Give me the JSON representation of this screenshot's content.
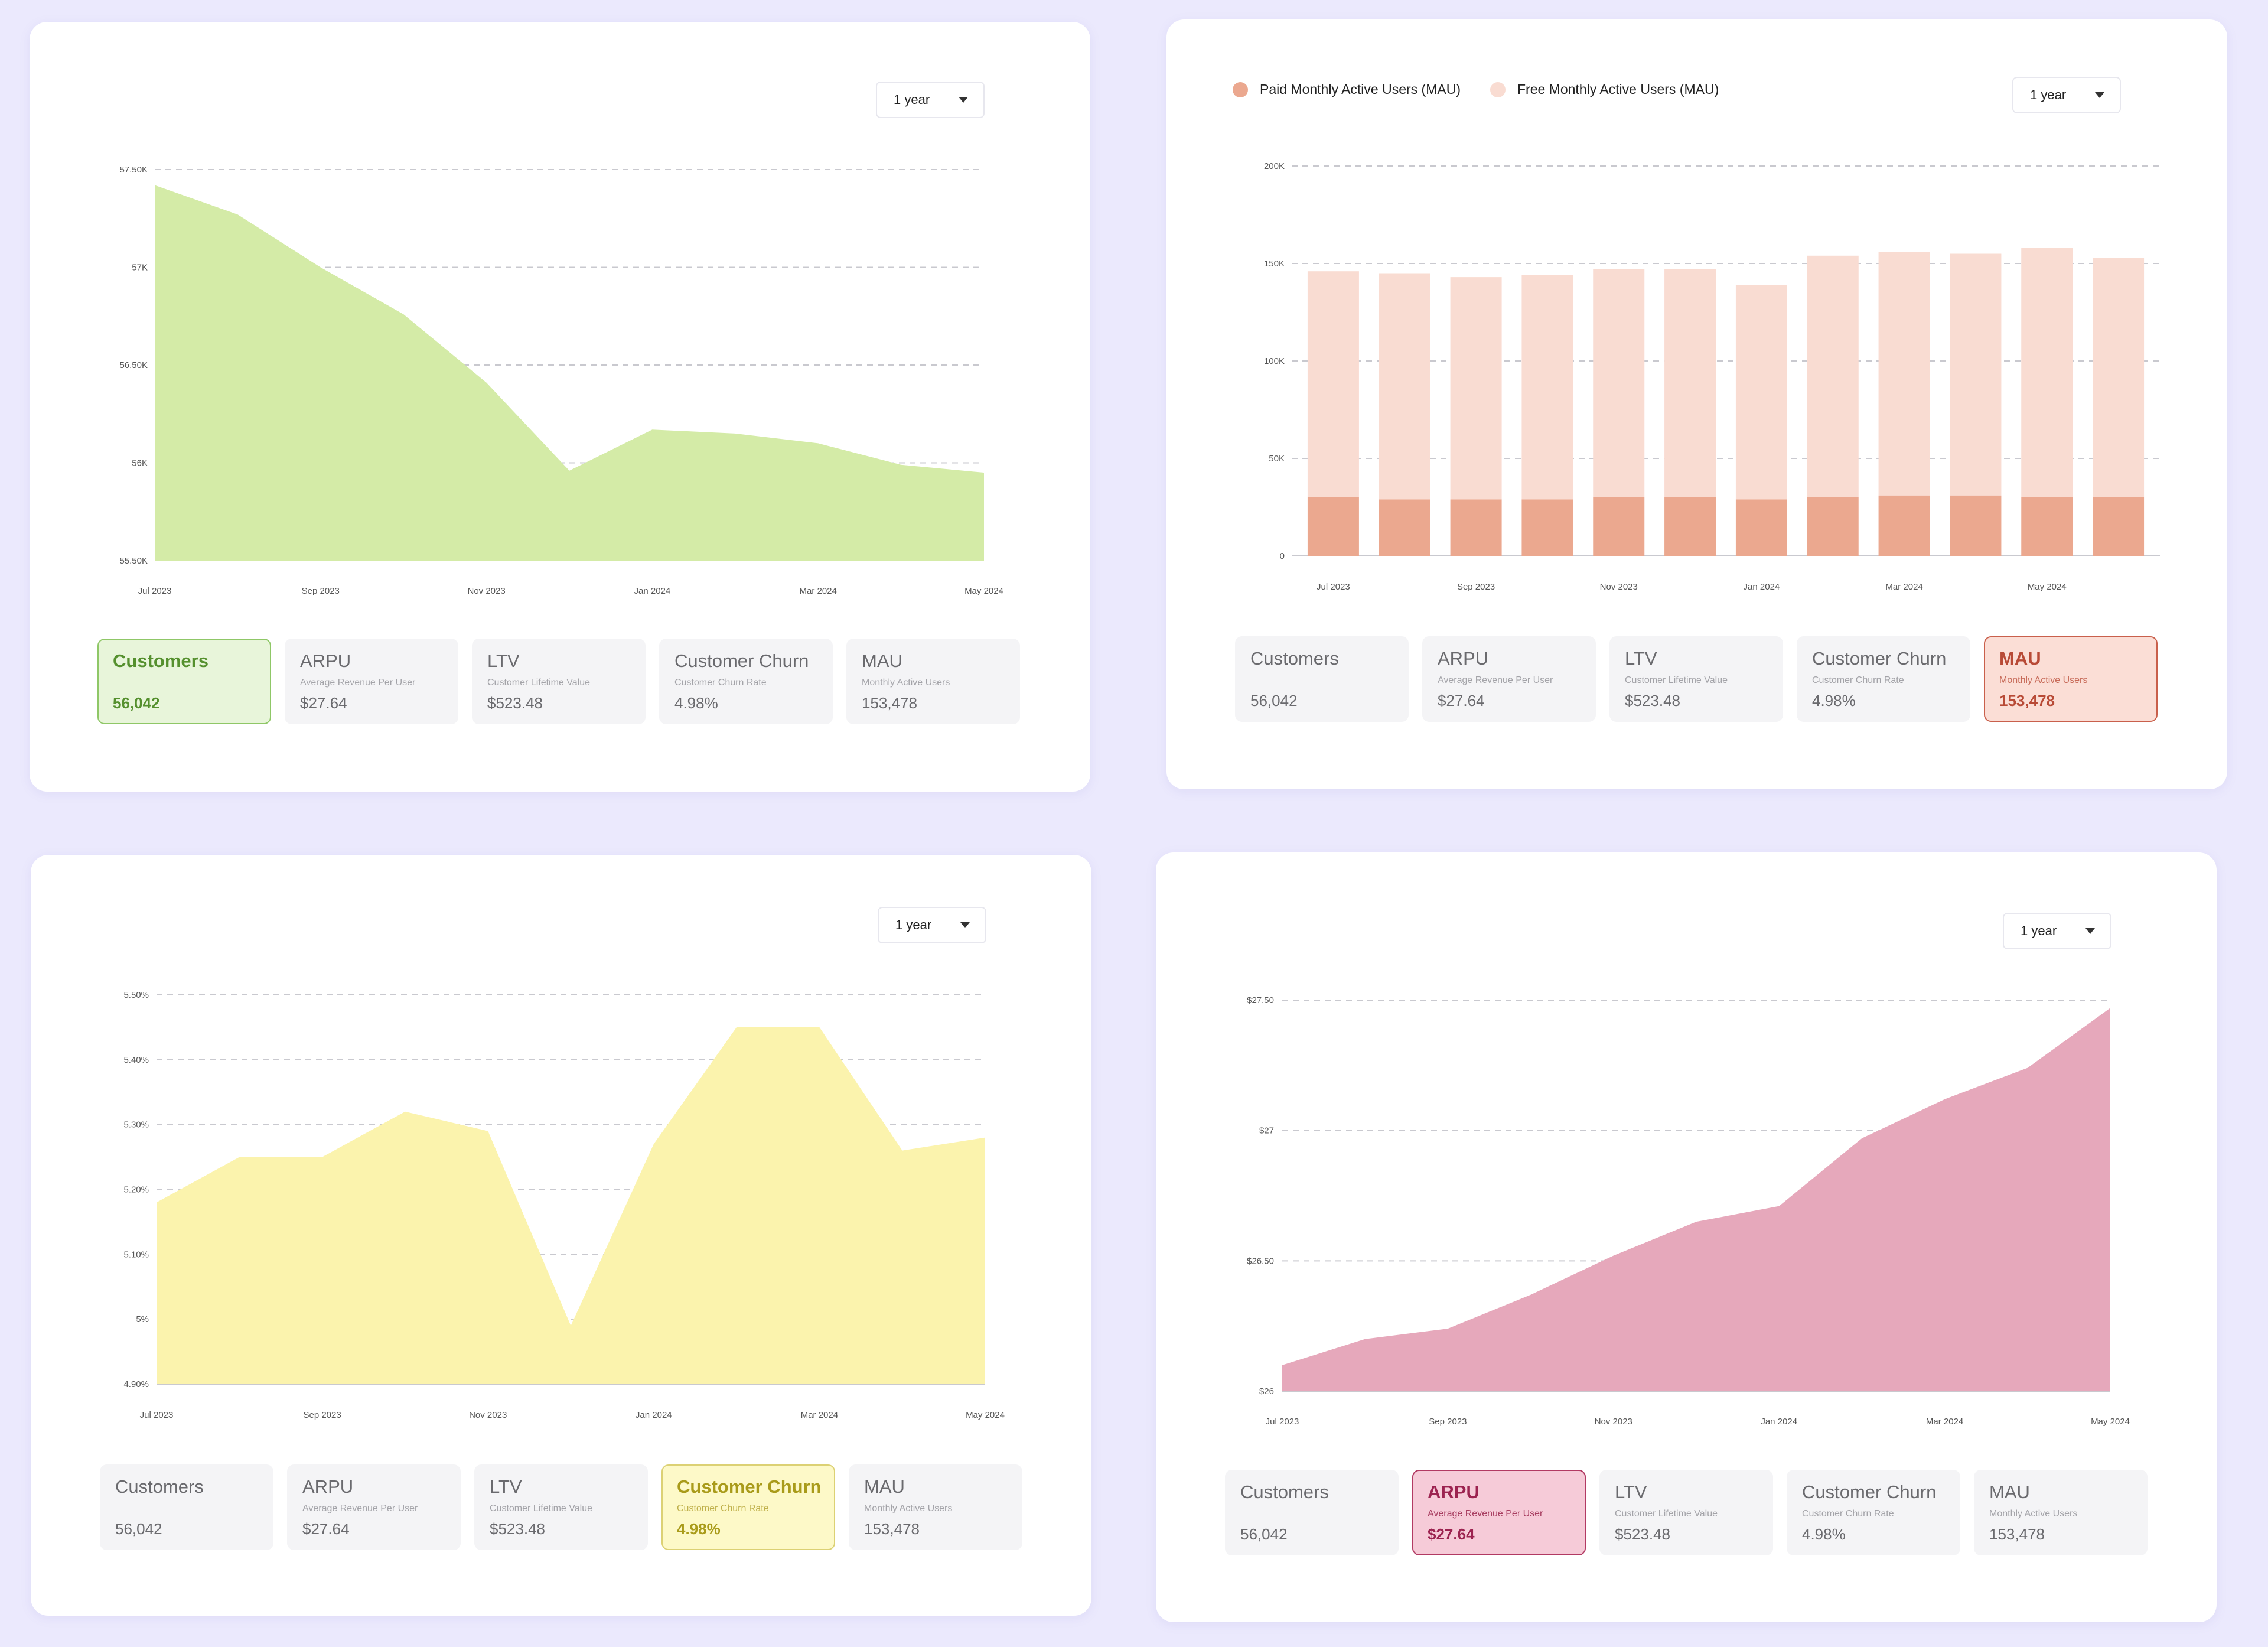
{
  "tiles": [
    {
      "key": "customers",
      "title": "Customers",
      "subtitle": "",
      "value": "56,042"
    },
    {
      "key": "arpu",
      "title": "ARPU",
      "subtitle": "Average Revenue Per User",
      "value": "$27.64"
    },
    {
      "key": "ltv",
      "title": "LTV",
      "subtitle": "Customer Lifetime Value",
      "value": "$523.48"
    },
    {
      "key": "churn",
      "title": "Customer Churn",
      "subtitle": "Customer Churn Rate",
      "value": "4.98%"
    },
    {
      "key": "mau",
      "title": "MAU",
      "subtitle": "Monthly Active Users",
      "value": "153,478"
    }
  ],
  "panels": [
    {
      "range_label": "1 year",
      "active_tile": "customers"
    },
    {
      "range_label": "1 year",
      "active_tile": "mau"
    },
    {
      "range_label": "1 year",
      "active_tile": "churn"
    },
    {
      "range_label": "1 year",
      "active_tile": "arpu"
    }
  ],
  "legend": {
    "paid_label": "Paid Monthly Active Users (MAU)",
    "free_label": "Free Monthly Active Users (MAU)"
  },
  "colors": {
    "customers_fill": "#d4eba7",
    "paid": "#eba88f",
    "free": "#f9dcd2",
    "churn_fill": "#fbf3ad",
    "arpu_fill": "#e6a8bb",
    "grid": "#c9c9cf"
  },
  "chart_data": [
    {
      "type": "area",
      "title": "Customers",
      "x_tick_labels": [
        "Jul 2023",
        "Sep 2023",
        "Nov 2023",
        "Jan 2024",
        "Mar 2024",
        "May 2024"
      ],
      "y_tick_labels": [
        "55.50K",
        "56K",
        "56.50K",
        "57K",
        "57.50K"
      ],
      "y_ticks": [
        55500,
        56000,
        56500,
        57000,
        57500
      ],
      "ylim": [
        55500,
        57500
      ],
      "points": [
        {
          "x": 0,
          "y": 57420
        },
        {
          "x": 0.5,
          "y": 57270
        },
        {
          "x": 1,
          "y": 57000
        },
        {
          "x": 1.5,
          "y": 56760
        },
        {
          "x": 2,
          "y": 56410
        },
        {
          "x": 2.5,
          "y": 55960
        },
        {
          "x": 3,
          "y": 56170
        },
        {
          "x": 3.5,
          "y": 56150
        },
        {
          "x": 4,
          "y": 56100
        },
        {
          "x": 4.5,
          "y": 55990
        },
        {
          "x": 5,
          "y": 55950
        }
      ]
    },
    {
      "type": "bar",
      "title": "Monthly Active Users",
      "stacked": true,
      "x_tick_labels": [
        "Jul 2023",
        "Sep 2023",
        "Nov 2023",
        "Jan 2024",
        "Mar 2024",
        "May 2024"
      ],
      "x_tick_positions": [
        0,
        2,
        4,
        6,
        8,
        10
      ],
      "y_tick_labels": [
        "0",
        "50K",
        "100K",
        "150K",
        "200K"
      ],
      "y_ticks": [
        0,
        50000,
        100000,
        150000,
        200000
      ],
      "ylim": [
        0,
        200000
      ],
      "series": [
        {
          "name": "Paid Monthly Active Users (MAU)",
          "values": [
            30000,
            29000,
            29000,
            29000,
            30000,
            30000,
            29000,
            30000,
            31000,
            31000,
            30000,
            30000
          ]
        },
        {
          "name": "Free Monthly Active Users (MAU)",
          "values": [
            116000,
            116000,
            114000,
            115000,
            117000,
            117000,
            110000,
            124000,
            125000,
            124000,
            128000,
            123000
          ]
        }
      ]
    },
    {
      "type": "area",
      "title": "Customer Churn",
      "x_tick_labels": [
        "Jul 2023",
        "Sep 2023",
        "Nov 2023",
        "Jan 2024",
        "Mar 2024",
        "May 2024"
      ],
      "y_tick_labels": [
        "4.90%",
        "5%",
        "5.10%",
        "5.20%",
        "5.30%",
        "5.40%",
        "5.50%"
      ],
      "y_ticks": [
        4.9,
        5.0,
        5.1,
        5.2,
        5.3,
        5.4,
        5.5
      ],
      "ylim": [
        4.9,
        5.5
      ],
      "points": [
        {
          "x": 0,
          "y": 5.18
        },
        {
          "x": 0.5,
          "y": 5.25
        },
        {
          "x": 1,
          "y": 5.25
        },
        {
          "x": 1.5,
          "y": 5.32
        },
        {
          "x": 2,
          "y": 5.29
        },
        {
          "x": 2.5,
          "y": 4.99
        },
        {
          "x": 3,
          "y": 5.27
        },
        {
          "x": 3.5,
          "y": 5.45
        },
        {
          "x": 4,
          "y": 5.45
        },
        {
          "x": 4.5,
          "y": 5.26
        },
        {
          "x": 5,
          "y": 5.28
        }
      ]
    },
    {
      "type": "area",
      "title": "ARPU",
      "x_tick_labels": [
        "Jul 2023",
        "Sep 2023",
        "Nov 2023",
        "Jan 2024",
        "Mar 2024",
        "May 2024"
      ],
      "y_tick_labels": [
        "$26",
        "$26.50",
        "$27",
        "$27.50"
      ],
      "y_ticks": [
        26,
        26.5,
        27,
        27.5
      ],
      "ylim": [
        26,
        27.5
      ],
      "points": [
        {
          "x": 0,
          "y": 26.1
        },
        {
          "x": 0.5,
          "y": 26.2
        },
        {
          "x": 1,
          "y": 26.24
        },
        {
          "x": 1.5,
          "y": 26.37
        },
        {
          "x": 2,
          "y": 26.52
        },
        {
          "x": 2.5,
          "y": 26.65
        },
        {
          "x": 3,
          "y": 26.71
        },
        {
          "x": 3.5,
          "y": 26.97
        },
        {
          "x": 4,
          "y": 27.12
        },
        {
          "x": 4.5,
          "y": 27.24
        },
        {
          "x": 5,
          "y": 27.47
        }
      ]
    }
  ]
}
